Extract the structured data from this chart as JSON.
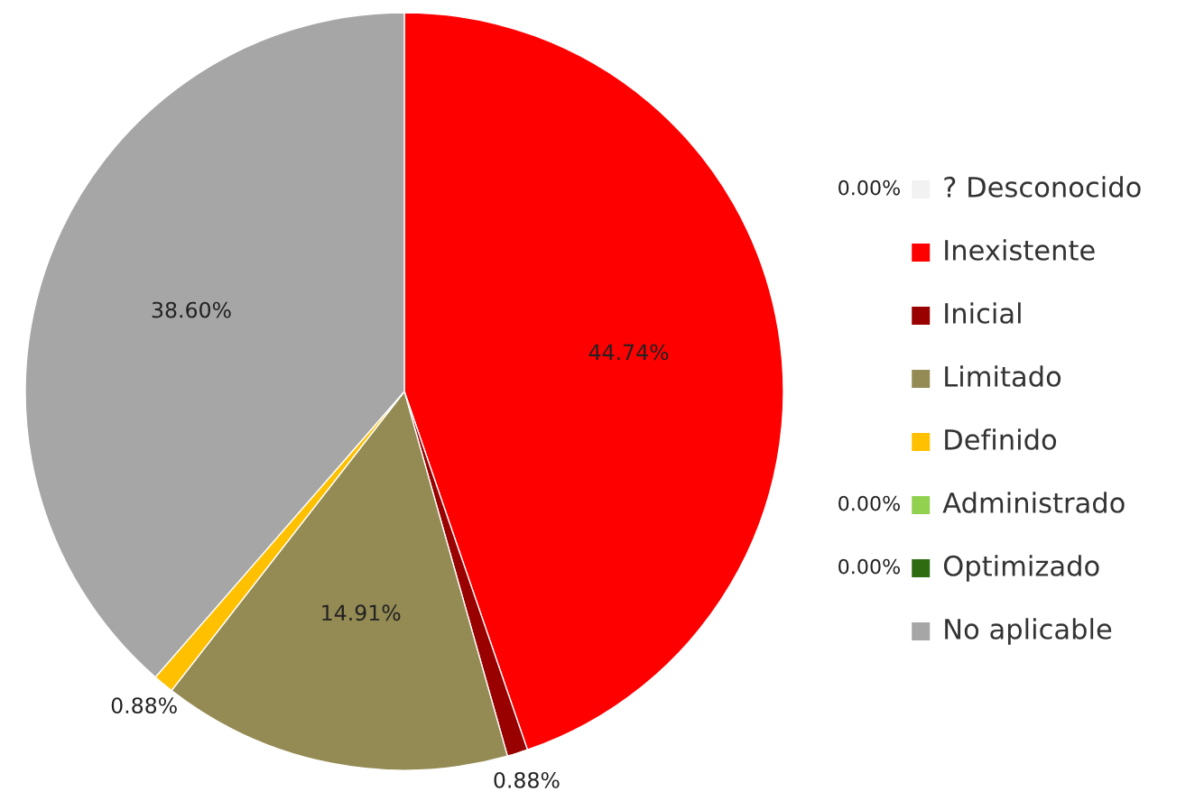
{
  "chart_data": {
    "type": "pie",
    "categories": [
      "? Desconocido",
      "Inexistente",
      "Inicial",
      "Limitado",
      "Definido",
      "Administrado",
      "Optimizado",
      "No aplicable"
    ],
    "values": [
      0,
      44.74,
      0.88,
      14.91,
      0.88,
      0,
      0,
      38.6
    ],
    "colors": [
      "#f2f2f2",
      "#ff0000",
      "#990000",
      "#948a54",
      "#ffc000",
      "#92d050",
      "#2e6b11",
      "#a6a6a6"
    ],
    "value_labels": [
      "0.00%",
      "44.74%",
      "0.88%",
      "14.91%",
      "0.88%",
      "0.00%",
      "0.00%",
      "38.60%"
    ],
    "legend": "right"
  }
}
